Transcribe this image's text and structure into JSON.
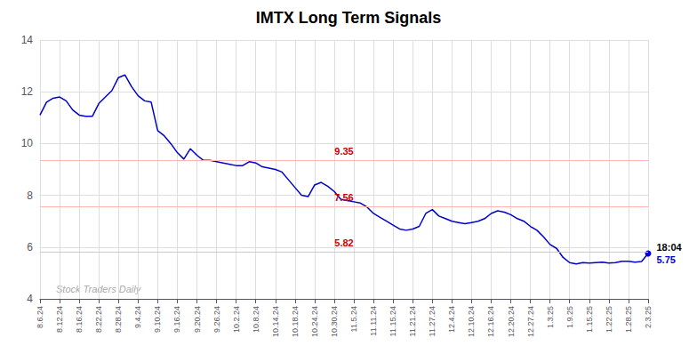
{
  "chart_data": {
    "type": "line",
    "title": "IMTX Long Term Signals",
    "watermark": "Stock Traders Daily",
    "annotations": [
      "18:04"
    ],
    "categories": [
      "8.6.24",
      null,
      null,
      "8.12.24",
      null,
      null,
      "8.16.24",
      null,
      null,
      "8.22.24",
      null,
      null,
      "8.28.24",
      null,
      null,
      "9.4.24",
      null,
      null,
      "9.10.24",
      null,
      null,
      "9.16.24",
      null,
      null,
      "9.20.24",
      null,
      null,
      "9.26.24",
      null,
      null,
      "10.2.24",
      null,
      null,
      "10.8.24",
      null,
      null,
      "10.14.24",
      null,
      null,
      "10.18.24",
      null,
      null,
      "10.24.24",
      null,
      null,
      "10.30.24",
      null,
      null,
      "11.5.24",
      null,
      null,
      "11.11.24",
      null,
      null,
      "11.15.24",
      null,
      null,
      "11.21.24",
      null,
      null,
      "11.27.24",
      null,
      null,
      "12.4.24",
      null,
      null,
      "12.10.24",
      null,
      null,
      "12.16.24",
      null,
      null,
      "12.20.24",
      null,
      null,
      "12.27.24",
      null,
      null,
      "1.3.25",
      null,
      null,
      "1.9.25",
      null,
      null,
      "1.15.25",
      null,
      null,
      "1.22.25",
      null,
      null,
      "1.28.25",
      null,
      null,
      "2.3.25"
    ],
    "series": [
      {
        "name": "IMTX",
        "color": "#0000cc",
        "marker": "circle",
        "values": [
          11.1,
          11.6,
          11.75,
          11.8,
          11.65,
          11.3,
          11.1,
          11.05,
          11.05,
          11.55,
          11.8,
          12.05,
          12.55,
          12.65,
          12.2,
          11.85,
          11.65,
          11.6,
          10.5,
          10.3,
          10.0,
          9.65,
          9.4,
          9.8,
          9.55,
          9.35,
          9.35,
          9.3,
          9.25,
          9.2,
          9.15,
          9.15,
          9.3,
          9.25,
          9.1,
          9.05,
          9.0,
          8.9,
          8.6,
          8.3,
          8.0,
          7.95,
          8.4,
          8.5,
          8.35,
          8.15,
          7.85,
          7.8,
          7.75,
          7.7,
          7.55,
          7.3,
          7.15,
          7.0,
          6.85,
          6.7,
          6.65,
          6.7,
          6.8,
          7.3,
          7.45,
          7.2,
          7.1,
          7.0,
          6.95,
          6.9,
          6.95,
          7.0,
          7.1,
          7.3,
          7.4,
          7.35,
          7.25,
          7.1,
          7.0,
          6.8,
          6.65,
          6.4,
          6.1,
          5.95,
          5.6,
          5.4,
          5.35,
          5.4,
          5.38,
          5.4,
          5.42,
          5.38,
          5.4,
          5.45,
          5.45,
          5.42,
          5.44,
          5.75
        ]
      }
    ],
    "hlines": {
      "values": [
        9.35,
        7.56,
        5.82
      ],
      "color": "#ffb3b3",
      "label_color": "#cc0000"
    },
    "ylim": [
      4,
      14
    ],
    "yticks": [
      4,
      6,
      8,
      10,
      12,
      14
    ],
    "grid": true
  }
}
